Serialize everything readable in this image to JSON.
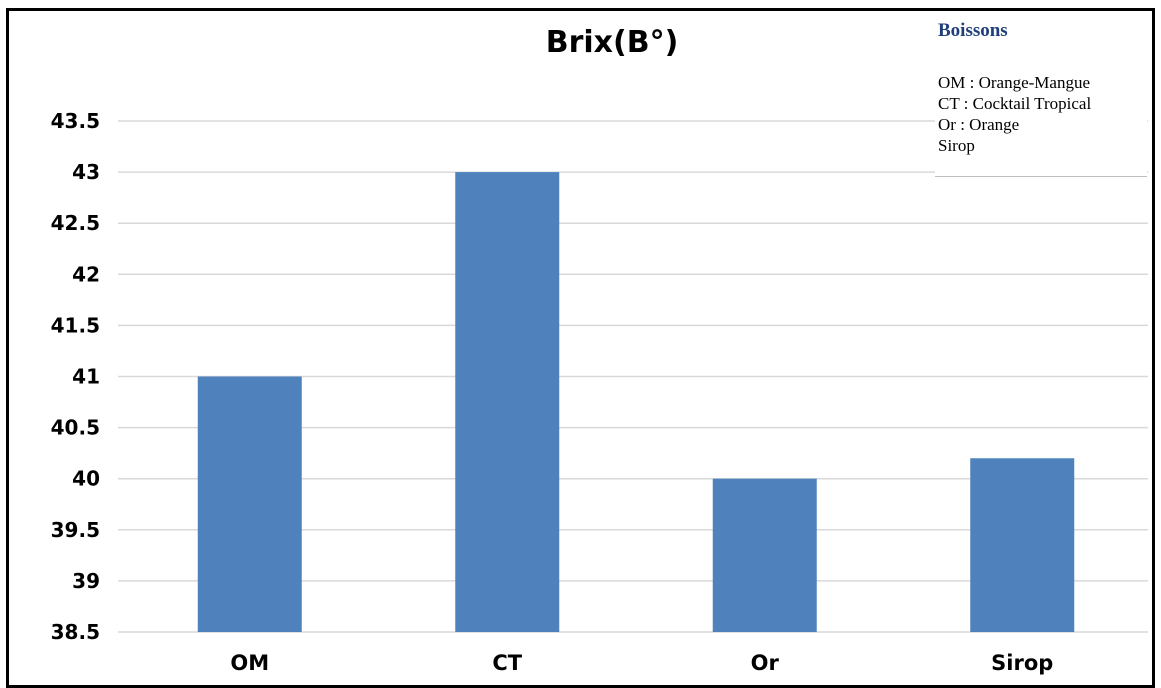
{
  "chart_data": {
    "type": "bar",
    "title": "Brix(B°)",
    "categories": [
      "OM",
      "CT",
      "Or",
      "Sirop"
    ],
    "series": [
      {
        "values": [
          41,
          43,
          40,
          40.2
        ]
      }
    ],
    "ylim": [
      38.5,
      43.5
    ],
    "yticks": [
      "38.5",
      "39",
      "39.5",
      "40",
      "40.5",
      "41",
      "41.5",
      "42",
      "42.5",
      "43",
      "43.5"
    ],
    "grid": true,
    "bar_color": "#4f81bd",
    "grid_color": "#d9d9d9"
  },
  "legend": {
    "title": "Boissons",
    "items": [
      "OM : Orange-Mangue",
      "CT : Cocktail Tropical",
      "Or : Orange",
      "Sirop"
    ]
  }
}
